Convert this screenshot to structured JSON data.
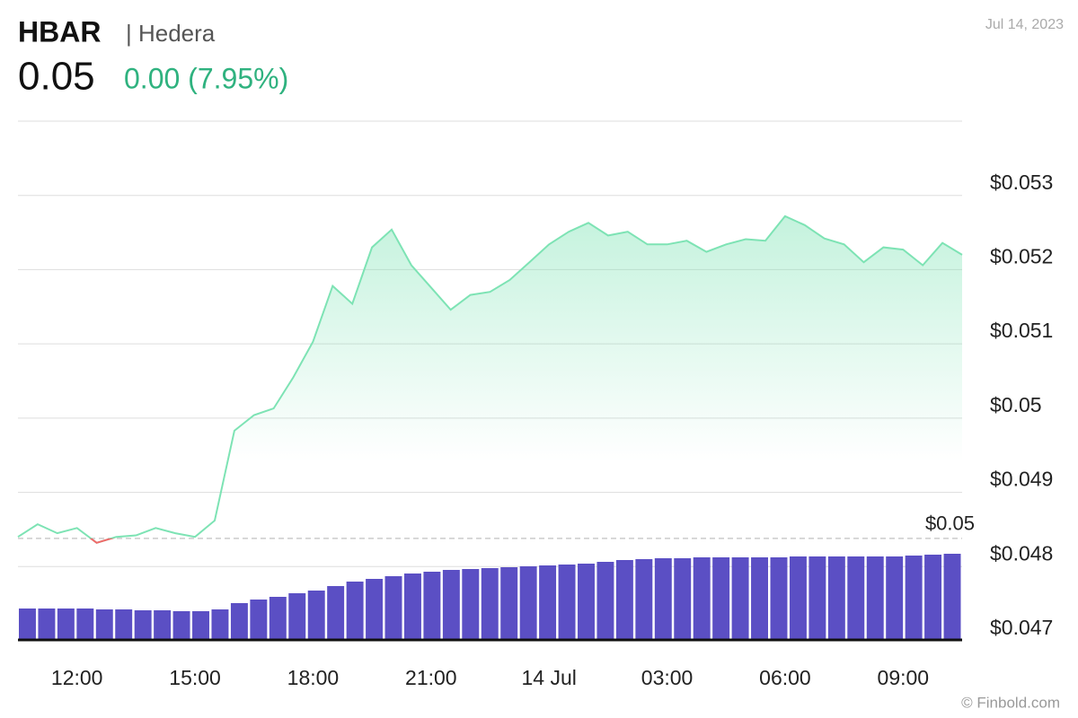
{
  "chart_data": {
    "type": "area",
    "symbol": "HBAR",
    "name": "| Hedera",
    "price": "0.05",
    "change": "0.00 (7.95%)",
    "date": "Jul 14, 2023",
    "source": "© Finbold.com",
    "color": "#7de3b4",
    "down_color": "#f06a6a",
    "volume_color": "#5b4fc4",
    "reference": {
      "value": 0.04838,
      "label": "$0.05"
    },
    "xlim": [
      10.5,
      34.5
    ],
    "xticks": [
      {
        "value": 12,
        "label": "12:00"
      },
      {
        "value": 15,
        "label": "15:00"
      },
      {
        "value": 18,
        "label": "18:00"
      },
      {
        "value": 21,
        "label": "21:00"
      },
      {
        "value": 24,
        "label": "14 Jul"
      },
      {
        "value": 27,
        "label": "03:00"
      },
      {
        "value": 30,
        "label": "06:00"
      },
      {
        "value": 33,
        "label": "09:00"
      }
    ],
    "ylim": [
      0.047,
      0.054
    ],
    "yticks": [
      {
        "value": 0.047,
        "label": "$0.047"
      },
      {
        "value": 0.048,
        "label": "$0.048"
      },
      {
        "value": 0.049,
        "label": "$0.049"
      },
      {
        "value": 0.05,
        "label": "$0.05"
      },
      {
        "value": 0.051,
        "label": "$0.051"
      },
      {
        "value": 0.052,
        "label": "$0.052"
      },
      {
        "value": 0.053,
        "label": "$0.053"
      }
    ],
    "grid": true,
    "x": [
      10.5,
      11,
      11.5,
      12,
      12.5,
      13,
      13.5,
      14,
      14.5,
      15,
      15.5,
      16,
      16.5,
      17,
      17.5,
      18,
      18.5,
      19,
      19.5,
      20,
      20.5,
      21,
      21.5,
      22,
      22.5,
      23,
      23.5,
      24,
      24.5,
      25,
      25.5,
      26,
      26.5,
      27,
      27.5,
      28,
      28.5,
      29,
      29.5,
      30,
      30.5,
      31,
      31.5,
      32,
      32.5,
      33,
      33.5,
      34,
      34.5
    ],
    "values": [
      0.0484,
      0.04857,
      0.04845,
      0.04852,
      0.04832,
      0.0484,
      0.04842,
      0.04852,
      0.04845,
      0.0484,
      0.04862,
      0.04983,
      0.05004,
      0.05013,
      0.05055,
      0.05103,
      0.05178,
      0.05154,
      0.0523,
      0.05254,
      0.05206,
      0.05176,
      0.05146,
      0.05166,
      0.0517,
      0.05186,
      0.0521,
      0.05234,
      0.05251,
      0.05263,
      0.05246,
      0.05251,
      0.05234,
      0.05234,
      0.05239,
      0.05224,
      0.05234,
      0.05241,
      0.05239,
      0.05272,
      0.0526,
      0.05242,
      0.05234,
      0.0521,
      0.0523,
      0.05227,
      0.05206,
      0.05236,
      0.0522
    ],
    "volume": [
      36,
      36,
      36,
      36,
      35,
      35,
      34,
      34,
      33,
      33,
      35,
      42,
      46,
      49,
      53,
      56,
      61,
      66,
      69,
      72,
      75,
      77,
      79,
      80,
      81,
      82,
      83,
      84,
      85,
      86,
      88,
      90,
      91,
      92,
      92,
      93,
      93,
      93,
      93,
      93,
      94,
      94,
      94,
      94,
      94,
      94,
      95,
      96,
      97
    ]
  }
}
